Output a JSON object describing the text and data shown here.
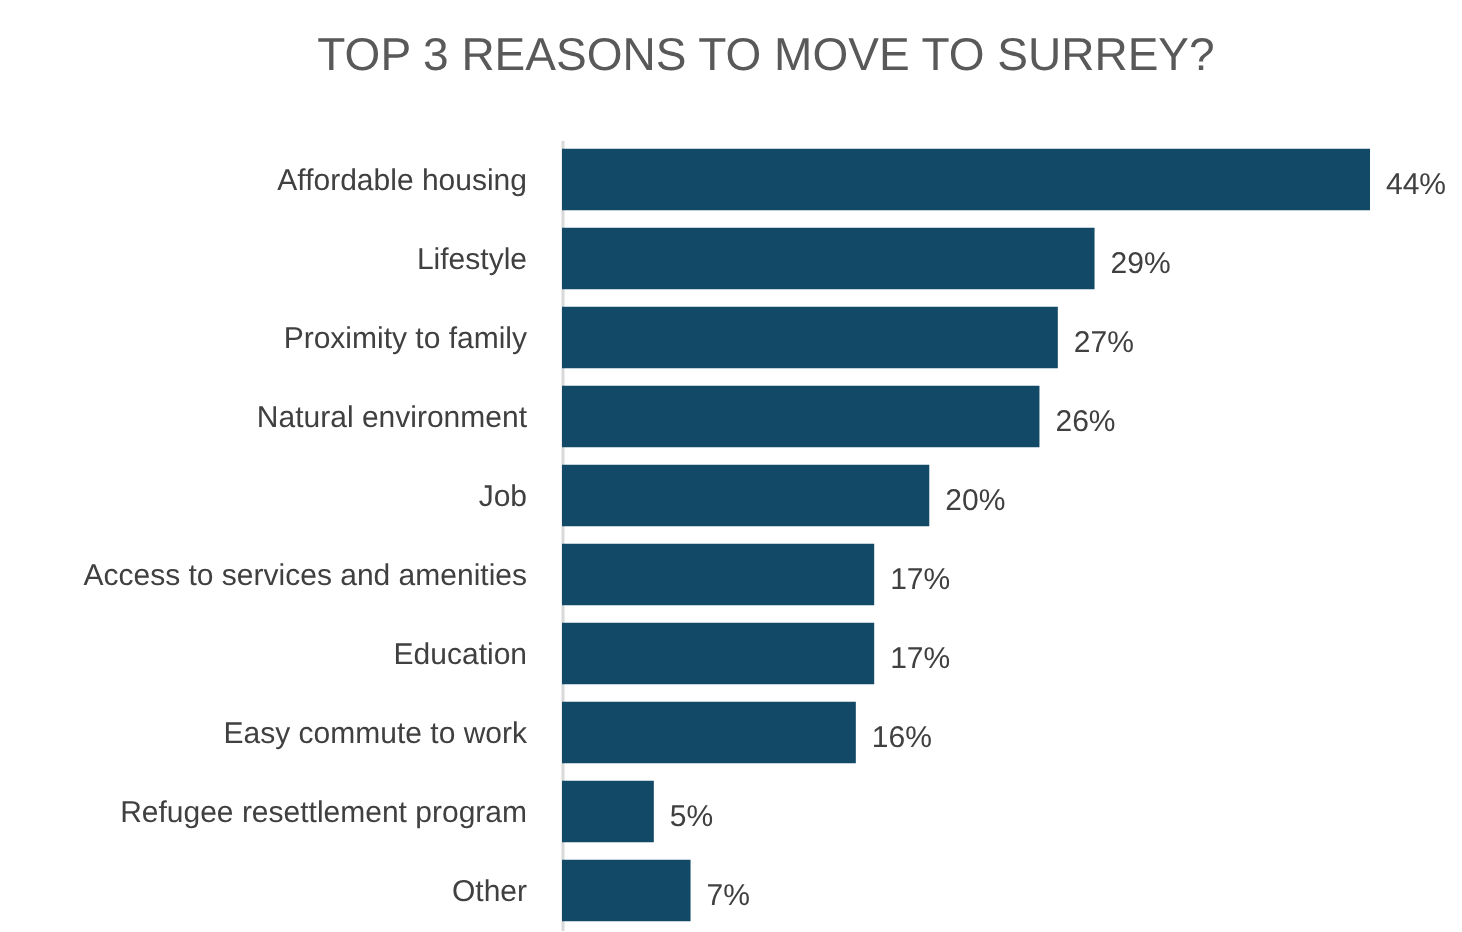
{
  "chart_data": {
    "type": "bar",
    "orientation": "horizontal",
    "title": "TOP 3 REASONS TO MOVE TO SURREY?",
    "categories": [
      "Affordable housing",
      "Lifestyle",
      "Proximity to family",
      "Natural environment",
      "Job",
      "Access to services and amenities",
      "Education",
      "Easy commute to work",
      "Refugee resettlement program",
      "Other"
    ],
    "values": [
      44,
      29,
      27,
      26,
      20,
      17,
      17,
      16,
      5,
      7
    ],
    "value_labels": [
      "44%",
      "29%",
      "27%",
      "26%",
      "20%",
      "17%",
      "17%",
      "16%",
      "5%",
      "7%"
    ],
    "color": "#124966"
  }
}
